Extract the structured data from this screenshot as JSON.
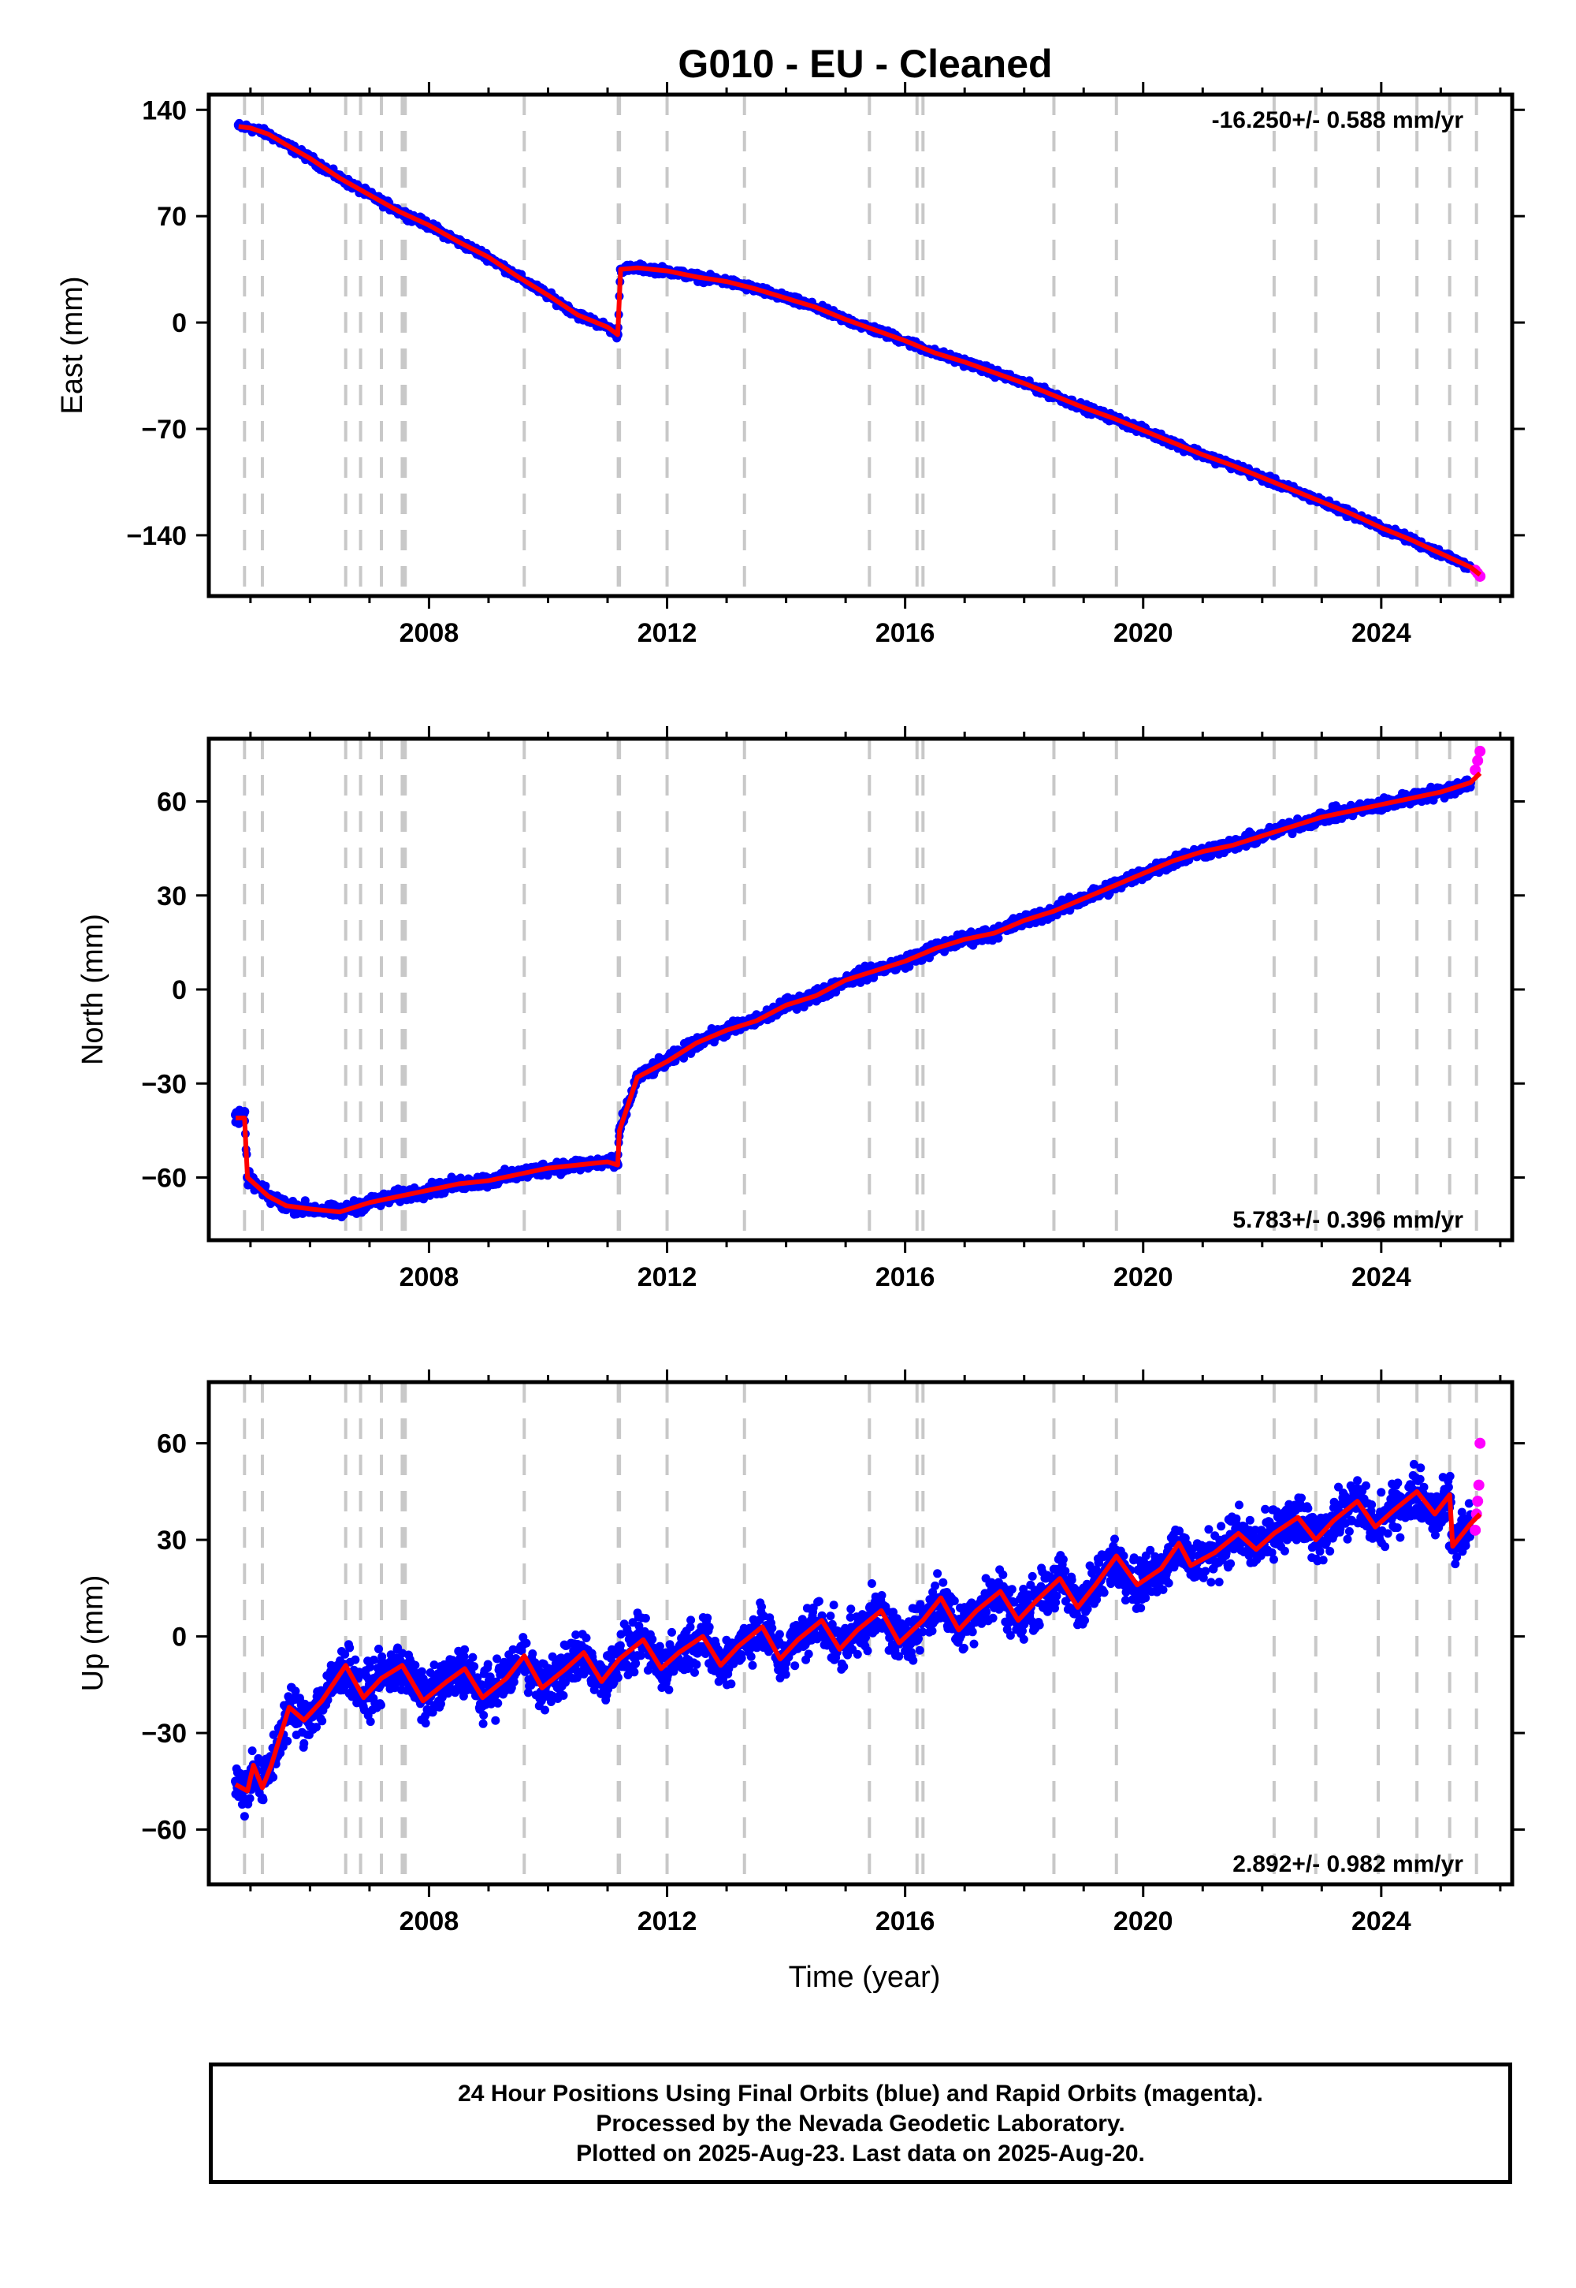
{
  "figure": {
    "title": "G010  - EU - Cleaned",
    "xlabel": "Time (year)",
    "caption": [
      "24 Hour Positions Using Final Orbits (blue) and Rapid Orbits (magenta).",
      "Processed by the Nevada Geodetic Laboratory.",
      "Plotted on 2025-Aug-23. Last data on 2025-Aug-20."
    ]
  },
  "colors": {
    "final_orbits": "#0000ff",
    "rapid_orbits": "#ff00ff",
    "model_fit": "#ff0000",
    "event_lines": "#c8c8c8",
    "frame": "#000000"
  },
  "chart_data": [
    {
      "type": "scatter",
      "component": "east",
      "ylabel": "East (mm)",
      "rate_label": "-16.250+/- 0.588 mm/yr",
      "rate_position": "top-right",
      "xlim": [
        2004.3,
        2026.2
      ],
      "ylim": [
        -180,
        150
      ],
      "xticks": [
        2008,
        2012,
        2016,
        2020,
        2024
      ],
      "yticks": [
        140,
        70,
        0,
        -70,
        -140
      ],
      "ytick_labels": [
        "140",
        "70",
        "0",
        "−70",
        "−140"
      ],
      "grid": false,
      "event_lines": [
        2004.9,
        2005.2,
        2006.6,
        2006.85,
        2007.2,
        2007.55,
        2007.6,
        2009.6,
        2011.18,
        2011.2,
        2012.0,
        2013.3,
        2015.4,
        2016.2,
        2016.3,
        2018.5,
        2019.55,
        2022.2,
        2022.9,
        2023.95,
        2024.6,
        2025.15,
        2025.6
      ],
      "series": [
        {
          "name": "Final Orbits",
          "color": "#0000ff",
          "x": [
            2004.8,
            2005.0,
            2005.3,
            2005.6,
            2006.0,
            2006.5,
            2007.0,
            2007.5,
            2008.0,
            2008.5,
            2009.0,
            2009.5,
            2010.0,
            2010.5,
            2011.0,
            2011.17,
            2011.22,
            2011.5,
            2012.0,
            2012.5,
            2013.0,
            2013.5,
            2014.0,
            2014.5,
            2015.0,
            2015.5,
            2016.0,
            2016.5,
            2017.0,
            2017.5,
            2018.0,
            2018.5,
            2019.0,
            2019.5,
            2020.0,
            2020.5,
            2021.0,
            2021.5,
            2022.0,
            2022.5,
            2023.0,
            2023.5,
            2024.0,
            2024.5,
            2025.0,
            2025.5
          ],
          "y": [
            130,
            128,
            124,
            117,
            108,
            95,
            84,
            73,
            64,
            53,
            43,
            30,
            18,
            5,
            -3,
            -8,
            35,
            36,
            34,
            30,
            27,
            22,
            16,
            10,
            2,
            -5,
            -12,
            -20,
            -26,
            -33,
            -40,
            -48,
            -56,
            -63,
            -71,
            -79,
            -87,
            -94,
            -102,
            -110,
            -118,
            -126,
            -135,
            -143,
            -152,
            -161
          ]
        },
        {
          "name": "Rapid Orbits",
          "color": "#ff00ff",
          "x": [
            2025.58,
            2025.62,
            2025.66
          ],
          "y": [
            -163,
            -165,
            -167
          ]
        },
        {
          "name": "Model",
          "color": "#ff0000",
          "x": [
            2004.8,
            2005.0,
            2005.3,
            2005.6,
            2006.0,
            2006.5,
            2007.0,
            2007.5,
            2008.0,
            2008.5,
            2009.0,
            2009.5,
            2010.0,
            2010.5,
            2011.0,
            2011.17,
            2011.22,
            2011.5,
            2012.0,
            2012.5,
            2013.0,
            2013.5,
            2014.0,
            2014.5,
            2015.0,
            2015.5,
            2016.0,
            2016.5,
            2017.0,
            2017.5,
            2018.0,
            2018.5,
            2019.0,
            2019.5,
            2020.0,
            2020.5,
            2021.0,
            2021.5,
            2022.0,
            2022.5,
            2023.0,
            2023.5,
            2024.0,
            2024.5,
            2025.0,
            2025.5,
            2025.66
          ],
          "y": [
            129,
            128,
            124,
            117,
            108,
            95,
            84,
            73,
            64,
            53,
            43,
            30,
            18,
            5,
            -3,
            -8,
            35,
            36,
            34,
            30,
            27,
            22,
            16,
            10,
            2,
            -5,
            -12,
            -20,
            -26,
            -33,
            -40,
            -48,
            -56,
            -63,
            -71,
            -79,
            -87,
            -94,
            -102,
            -110,
            -118,
            -126,
            -135,
            -143,
            -152,
            -161,
            -166
          ]
        }
      ]
    },
    {
      "type": "scatter",
      "component": "north",
      "ylabel": "North (mm)",
      "rate_label": "5.783+/- 0.396 mm/yr",
      "rate_position": "bottom-right",
      "xlim": [
        2004.3,
        2026.2
      ],
      "ylim": [
        -80,
        80
      ],
      "xticks": [
        2008,
        2012,
        2016,
        2020,
        2024
      ],
      "yticks": [
        60,
        30,
        0,
        -30,
        -60
      ],
      "ytick_labels": [
        "60",
        "30",
        "0",
        "−30",
        "−60"
      ],
      "grid": false,
      "event_lines": [
        2004.9,
        2005.2,
        2006.6,
        2006.85,
        2007.2,
        2007.55,
        2007.6,
        2009.6,
        2011.18,
        2011.2,
        2012.0,
        2013.3,
        2015.4,
        2016.2,
        2016.3,
        2018.5,
        2019.55,
        2022.2,
        2022.9,
        2023.95,
        2024.6,
        2025.15,
        2025.6
      ],
      "series": [
        {
          "name": "Final Orbits",
          "color": "#0000ff",
          "x": [
            2004.75,
            2004.9,
            2004.95,
            2005.3,
            2005.6,
            2006.0,
            2006.5,
            2007.0,
            2007.5,
            2008.0,
            2008.5,
            2009.0,
            2009.5,
            2010.0,
            2010.5,
            2011.0,
            2011.17,
            2011.2,
            2011.5,
            2012.0,
            2012.5,
            2013.0,
            2013.5,
            2014.0,
            2014.5,
            2015.0,
            2015.5,
            2016.0,
            2016.5,
            2017.0,
            2017.5,
            2018.0,
            2018.5,
            2019.0,
            2019.5,
            2020.0,
            2020.5,
            2021.0,
            2021.5,
            2022.0,
            2022.5,
            2023.0,
            2023.5,
            2024.0,
            2024.5,
            2025.0,
            2025.5
          ],
          "y": [
            -40,
            -39,
            -60,
            -66,
            -69,
            -70,
            -71,
            -68,
            -66,
            -63,
            -62,
            -61,
            -59,
            -57,
            -55,
            -54,
            -56,
            -45,
            -28,
            -23,
            -17,
            -13,
            -10,
            -5,
            -2,
            3,
            6,
            9,
            13,
            16,
            18,
            22,
            25,
            29,
            33,
            37,
            41,
            44,
            46,
            49,
            52,
            55,
            57,
            59,
            61,
            63,
            66
          ]
        },
        {
          "name": "Rapid Orbits",
          "color": "#ff00ff",
          "x": [
            2025.58,
            2025.62,
            2025.66
          ],
          "y": [
            70,
            73,
            76
          ]
        },
        {
          "name": "Model",
          "color": "#ff0000",
          "x": [
            2004.75,
            2004.9,
            2004.95,
            2005.3,
            2005.6,
            2006.0,
            2006.5,
            2007.0,
            2007.5,
            2008.0,
            2008.5,
            2009.0,
            2009.5,
            2010.0,
            2010.5,
            2011.0,
            2011.17,
            2011.2,
            2011.5,
            2012.0,
            2012.5,
            2013.0,
            2013.5,
            2014.0,
            2014.5,
            2015.0,
            2015.5,
            2016.0,
            2016.5,
            2017.0,
            2017.5,
            2018.0,
            2018.5,
            2019.0,
            2019.5,
            2020.0,
            2020.5,
            2021.0,
            2021.5,
            2022.0,
            2022.5,
            2023.0,
            2023.5,
            2024.0,
            2024.5,
            2025.0,
            2025.5,
            2025.66
          ],
          "y": [
            -41,
            -41,
            -60,
            -66,
            -69,
            -70,
            -71,
            -68,
            -66,
            -64,
            -62,
            -61,
            -59,
            -57,
            -56,
            -55,
            -56,
            -45,
            -28,
            -23,
            -17,
            -13,
            -10,
            -5,
            -2,
            3,
            6,
            9,
            13,
            16,
            18,
            22,
            25,
            29,
            33,
            37,
            41,
            44,
            46,
            49,
            52,
            55,
            57,
            59,
            61,
            63,
            66,
            69
          ]
        }
      ]
    },
    {
      "type": "scatter",
      "component": "up",
      "ylabel": "Up (mm)",
      "rate_label": "2.892+/- 0.982 mm/yr",
      "rate_position": "bottom-right",
      "xlim": [
        2004.3,
        2026.2
      ],
      "ylim": [
        -77,
        79
      ],
      "xticks": [
        2008,
        2012,
        2016,
        2020,
        2024
      ],
      "yticks": [
        60,
        30,
        0,
        -30,
        -60
      ],
      "ytick_labels": [
        "60",
        "30",
        "0",
        "−30",
        "−60"
      ],
      "grid": false,
      "event_lines": [
        2004.9,
        2005.2,
        2006.6,
        2006.85,
        2007.2,
        2007.55,
        2007.6,
        2009.6,
        2011.18,
        2011.2,
        2012.0,
        2013.3,
        2015.4,
        2016.2,
        2016.3,
        2018.5,
        2019.55,
        2022.2,
        2022.9,
        2023.95,
        2024.6,
        2025.15,
        2025.6
      ],
      "series": [
        {
          "name": "Final Orbits",
          "color": "#0000ff",
          "x": [
            2004.75,
            2005.0,
            2005.3,
            2005.6,
            2006.0,
            2006.5,
            2007.0,
            2007.5,
            2008.0,
            2008.5,
            2009.0,
            2009.5,
            2010.0,
            2010.5,
            2011.0,
            2011.5,
            2012.0,
            2012.5,
            2013.0,
            2013.5,
            2014.0,
            2014.5,
            2015.0,
            2015.5,
            2016.0,
            2016.5,
            2017.0,
            2017.5,
            2018.0,
            2018.5,
            2019.0,
            2019.5,
            2020.0,
            2020.5,
            2021.0,
            2021.5,
            2022.0,
            2022.5,
            2023.0,
            2023.5,
            2024.0,
            2024.5,
            2025.0,
            2025.15,
            2025.5
          ],
          "y": [
            -45,
            -43,
            -40,
            -22,
            -22,
            -14,
            -15,
            -12,
            -16,
            -14,
            -15,
            -10,
            -10,
            -8,
            -6,
            -6,
            -6,
            -5,
            -5,
            -3,
            -3,
            0,
            0,
            2,
            3,
            5,
            7,
            9,
            10,
            13,
            15,
            18,
            20,
            25,
            25,
            28,
            30,
            31,
            34,
            36,
            37,
            39,
            41,
            28,
            33
          ]
        },
        {
          "name": "Rapid Orbits",
          "color": "#ff00ff",
          "x": [
            2025.58,
            2025.6,
            2025.62,
            2025.64,
            2025.66
          ],
          "y": [
            33,
            38,
            42,
            47,
            60
          ]
        },
        {
          "name": "Model",
          "color": "#ff0000",
          "x": [
            2004.75,
            2004.95,
            2005.05,
            2005.2,
            2005.35,
            2005.65,
            2005.9,
            2006.2,
            2006.6,
            2006.9,
            2007.2,
            2007.55,
            2007.9,
            2008.3,
            2008.6,
            2008.9,
            2009.3,
            2009.6,
            2009.9,
            2010.3,
            2010.6,
            2010.9,
            2011.2,
            2011.6,
            2011.9,
            2012.2,
            2012.6,
            2012.9,
            2013.2,
            2013.6,
            2013.9,
            2014.2,
            2014.6,
            2014.9,
            2015.2,
            2015.6,
            2015.9,
            2016.3,
            2016.6,
            2016.9,
            2017.2,
            2017.6,
            2017.9,
            2018.2,
            2018.6,
            2018.9,
            2019.2,
            2019.55,
            2019.9,
            2020.3,
            2020.6,
            2020.8,
            2021.2,
            2021.6,
            2021.9,
            2022.2,
            2022.6,
            2022.9,
            2023.2,
            2023.6,
            2023.9,
            2024.2,
            2024.6,
            2024.9,
            2025.15,
            2025.2,
            2025.5,
            2025.66
          ],
          "y": [
            -46,
            -48,
            -40,
            -47,
            -40,
            -22,
            -26,
            -20,
            -9,
            -19,
            -13,
            -9,
            -20,
            -14,
            -10,
            -19,
            -13,
            -6,
            -16,
            -10,
            -5,
            -14,
            -7,
            -1,
            -10,
            -5,
            0,
            -9,
            -3,
            3,
            -7,
            -1,
            5,
            -4,
            2,
            8,
            -2,
            5,
            12,
            2,
            8,
            14,
            5,
            11,
            18,
            9,
            16,
            25,
            16,
            21,
            29,
            22,
            26,
            32,
            27,
            32,
            37,
            30,
            36,
            42,
            34,
            39,
            45,
            38,
            44,
            28,
            35,
            38
          ]
        }
      ]
    }
  ]
}
